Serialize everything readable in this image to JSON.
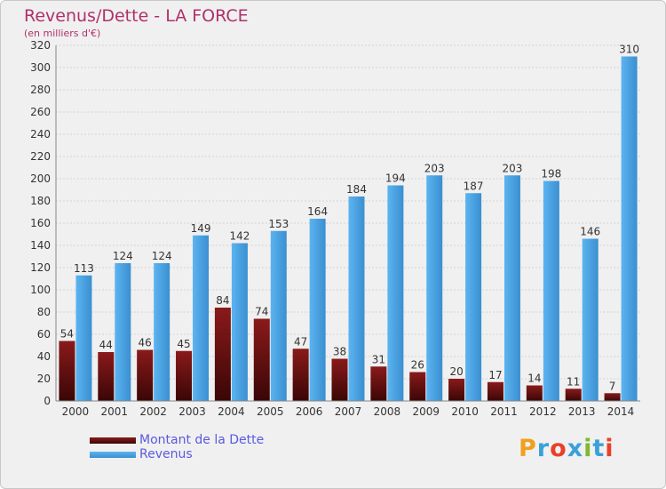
{
  "title": "Revenus/Dette - LA FORCE",
  "subtitle": "(en milliers d'€)",
  "logo": {
    "letters": [
      "P",
      "r",
      "o",
      "x",
      "i",
      "t",
      "i"
    ],
    "colors": [
      "#f0a020",
      "#3aa0d8",
      "#e8402a",
      "#3aa0d8",
      "#80b830",
      "#3aa0d8",
      "#e8402a"
    ]
  },
  "chart_data": {
    "type": "bar",
    "categories": [
      "2000",
      "2001",
      "2002",
      "2003",
      "2004",
      "2005",
      "2006",
      "2007",
      "2008",
      "2009",
      "2010",
      "2011",
      "2012",
      "2013",
      "2014"
    ],
    "series": [
      {
        "name": "Montant de la Dette",
        "color": "#7a1010",
        "values": [
          54,
          44,
          46,
          45,
          84,
          74,
          47,
          38,
          31,
          26,
          20,
          17,
          14,
          11,
          7
        ]
      },
      {
        "name": "Revenus",
        "color": "#4aa3e8",
        "values": [
          113,
          124,
          124,
          149,
          142,
          153,
          164,
          184,
          194,
          203,
          187,
          203,
          198,
          146,
          310
        ]
      }
    ],
    "ylim": [
      0,
      320
    ],
    "yticks": [
      0,
      20,
      40,
      60,
      80,
      100,
      120,
      140,
      160,
      180,
      200,
      220,
      240,
      260,
      280,
      300,
      320
    ],
    "grid": true,
    "legend": "bottom-left"
  }
}
